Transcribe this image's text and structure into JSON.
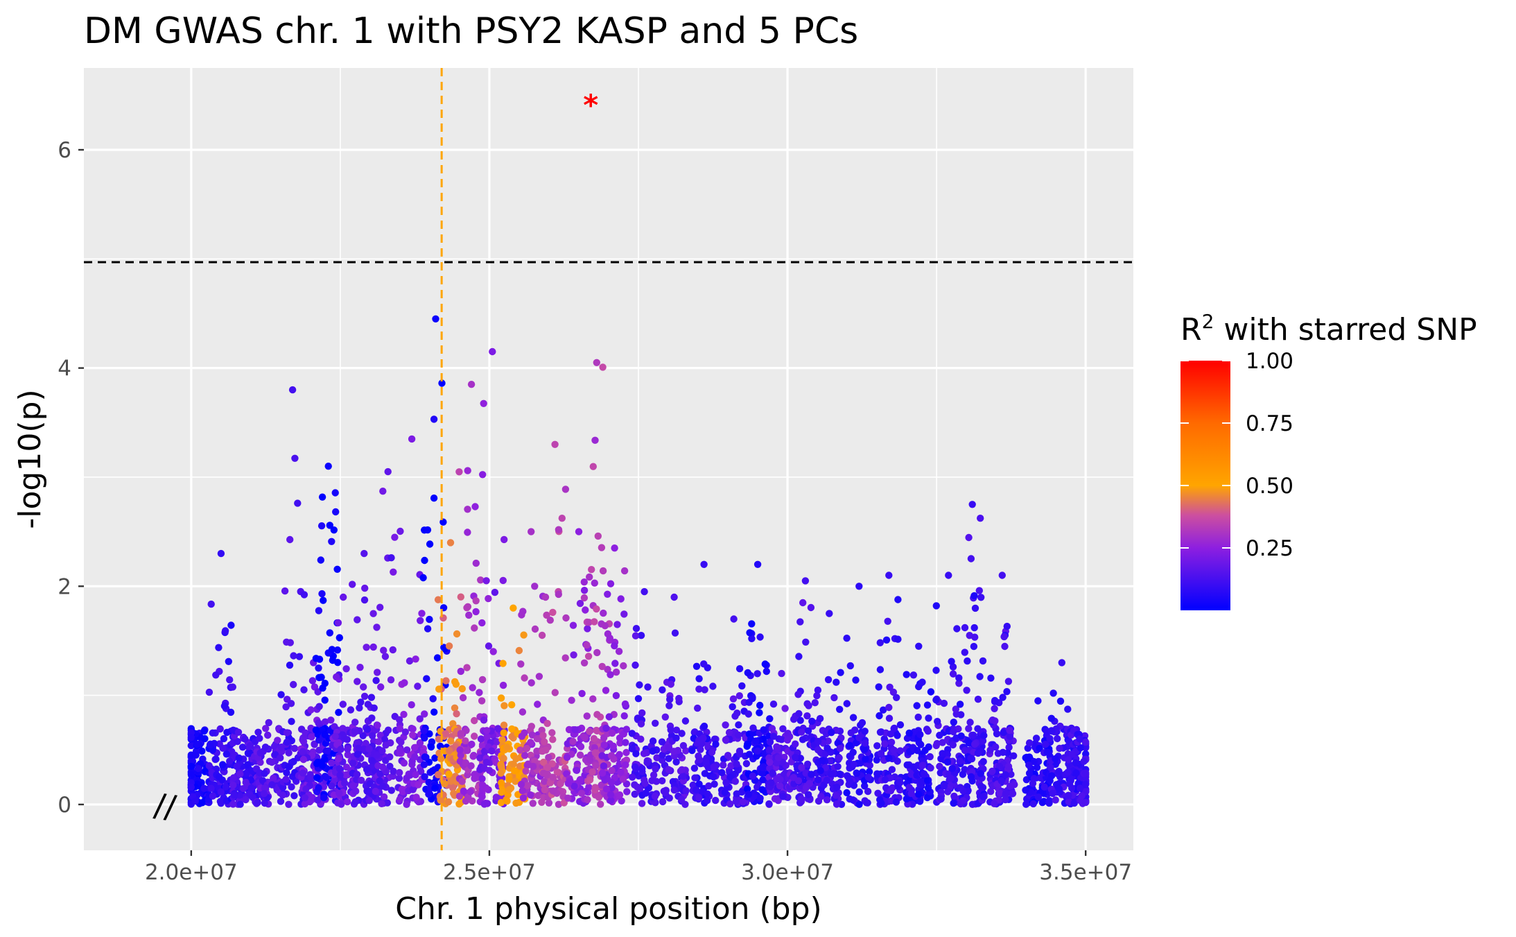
{
  "chart_data": {
    "type": "scatter",
    "title": "DM GWAS chr. 1 with PSY2 KASP and 5 PCs",
    "xlabel": "Chr. 1 physical position (bp)",
    "ylabel": "-log10(p)",
    "xlim": [
      18200000,
      35800000
    ],
    "ylim": [
      -0.42,
      6.75
    ],
    "x_ticks": [
      20000000,
      25000000,
      30000000,
      35000000
    ],
    "x_tick_labels": [
      "2.0e+07",
      "2.5e+07",
      "3.0e+07",
      "3.5e+07"
    ],
    "y_ticks": [
      0,
      2,
      4,
      6
    ],
    "y_tick_labels": [
      "0",
      "2",
      "4",
      "6"
    ],
    "y_minor_ticks": [
      1,
      3,
      5
    ],
    "grid": true,
    "axis_break": "//",
    "significance_threshold_y": 4.97,
    "kasp_marker_position": 24200000,
    "starred_snp": {
      "x": 26700000,
      "y": 6.42,
      "label": "*"
    },
    "legend": {
      "title_prefix": "R",
      "title_superscript": "2",
      "title_suffix": " with starred SNP",
      "position": "right",
      "ticks": [
        "1.00",
        "0.75",
        "0.50",
        "0.25"
      ],
      "tick_values": [
        1.0,
        0.75,
        0.5,
        0.25
      ],
      "range": [
        0.0,
        1.0
      ]
    },
    "colors": {
      "low": "#0000ff",
      "mid": "#ffa500",
      "high": "#ff0000",
      "panel": "#ebebeb",
      "grid": "#ffffff",
      "threshold_line": "#000000",
      "kasp_line": "#ffa500"
    },
    "series_note_excluded": true,
    "clusters": [
      {
        "x": 20100000,
        "peak": 0.55,
        "r2": 0.04
      },
      {
        "x": 20500000,
        "peak": 2.3,
        "r2": 0.09
      },
      {
        "x": 20900000,
        "peak": 0.6,
        "r2": 0.12
      },
      {
        "x": 21300000,
        "peak": 0.75,
        "r2": 0.15
      },
      {
        "x": 21700000,
        "peak": 3.8,
        "r2": 0.12
      },
      {
        "x": 22050000,
        "peak": 1.3,
        "r2": 0.18
      },
      {
        "x": 22300000,
        "peak": 3.1,
        "r2": 0.02
      },
      {
        "x": 22550000,
        "peak": 1.9,
        "r2": 0.18
      },
      {
        "x": 22900000,
        "peak": 2.3,
        "r2": 0.15
      },
      {
        "x": 23300000,
        "peak": 3.05,
        "r2": 0.17
      },
      {
        "x": 23700000,
        "peak": 3.35,
        "r2": 0.22
      },
      {
        "x": 24100000,
        "peak": 4.45,
        "r2": 0.02
      },
      {
        "x": 24350000,
        "peak": 2.4,
        "r2": 0.45
      },
      {
        "x": 24700000,
        "peak": 3.85,
        "r2": 0.3
      },
      {
        "x": 25050000,
        "peak": 4.15,
        "r2": 0.22
      },
      {
        "x": 25400000,
        "peak": 1.8,
        "r2": 0.5
      },
      {
        "x": 25700000,
        "peak": 2.5,
        "r2": 0.3
      },
      {
        "x": 26100000,
        "peak": 3.3,
        "r2": 0.35
      },
      {
        "x": 26500000,
        "peak": 2.5,
        "r2": 0.25
      },
      {
        "x": 26800000,
        "peak": 4.05,
        "r2": 0.32
      },
      {
        "x": 27100000,
        "peak": 2.35,
        "r2": 0.25
      },
      {
        "x": 27600000,
        "peak": 1.95,
        "r2": 0.12
      },
      {
        "x": 28100000,
        "peak": 1.9,
        "r2": 0.14
      },
      {
        "x": 28600000,
        "peak": 2.2,
        "r2": 0.1
      },
      {
        "x": 29100000,
        "peak": 1.7,
        "r2": 0.12
      },
      {
        "x": 29500000,
        "peak": 2.2,
        "r2": 0.06
      },
      {
        "x": 29900000,
        "peak": 1.2,
        "r2": 0.15
      },
      {
        "x": 30300000,
        "peak": 2.05,
        "r2": 0.12
      },
      {
        "x": 30700000,
        "peak": 1.75,
        "r2": 0.1
      },
      {
        "x": 31200000,
        "peak": 2.0,
        "r2": 0.08
      },
      {
        "x": 31700000,
        "peak": 2.1,
        "r2": 0.1
      },
      {
        "x": 32200000,
        "peak": 1.45,
        "r2": 0.08
      },
      {
        "x": 32700000,
        "peak": 2.1,
        "r2": 0.1
      },
      {
        "x": 33100000,
        "peak": 2.75,
        "r2": 0.1
      },
      {
        "x": 33600000,
        "peak": 2.1,
        "r2": 0.12
      },
      {
        "x": 34200000,
        "peak": 0.95,
        "r2": 0.06
      },
      {
        "x": 34600000,
        "peak": 1.3,
        "r2": 0.1
      },
      {
        "x": 34900000,
        "peak": 0.6,
        "r2": 0.1
      }
    ]
  }
}
